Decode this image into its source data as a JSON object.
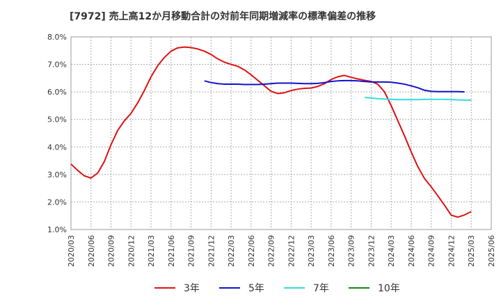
{
  "chart_data": {
    "type": "line",
    "title": "[7972]  売上高12か月移動合計の対前年同期増減率の標準偏差の推移",
    "xlabel": "",
    "ylabel": "",
    "ylim": [
      1.0,
      8.0
    ],
    "y_ticks": [
      "1.0%",
      "2.0%",
      "3.0%",
      "4.0%",
      "5.0%",
      "6.0%",
      "7.0%",
      "8.0%"
    ],
    "y_tick_values": [
      1.0,
      2.0,
      3.0,
      4.0,
      5.0,
      6.0,
      7.0,
      8.0
    ],
    "x_ticks": [
      "2020/03",
      "2020/06",
      "2020/09",
      "2020/12",
      "2021/03",
      "2021/06",
      "2021/09",
      "2021/12",
      "2022/03",
      "2022/06",
      "2022/09",
      "2022/12",
      "2023/03",
      "2023/06",
      "2023/09",
      "2023/12",
      "2024/03",
      "2024/06",
      "2024/09",
      "2024/12",
      "2025/03",
      "2025/06"
    ],
    "x_start": "2020/03",
    "x_months": 63,
    "grid": true,
    "legend_position": "bottom",
    "series": [
      {
        "name": "3年",
        "color": "#dd1111",
        "start": "2020/03",
        "values": [
          3.38,
          3.15,
          2.95,
          2.87,
          3.05,
          3.47,
          4.08,
          4.6,
          4.95,
          5.22,
          5.6,
          6.05,
          6.55,
          6.95,
          7.25,
          7.48,
          7.6,
          7.63,
          7.61,
          7.56,
          7.48,
          7.36,
          7.2,
          7.08,
          7.0,
          6.93,
          6.8,
          6.62,
          6.42,
          6.22,
          6.02,
          5.94,
          5.97,
          6.05,
          6.1,
          6.13,
          6.14,
          6.2,
          6.3,
          6.45,
          6.55,
          6.6,
          6.53,
          6.47,
          6.42,
          6.38,
          6.28,
          6.0,
          5.5,
          4.95,
          4.4,
          3.82,
          3.28,
          2.85,
          2.55,
          2.22,
          1.88,
          1.52,
          1.45,
          1.53,
          1.65
        ]
      },
      {
        "name": "5年",
        "color": "#1111cc",
        "start": "2021/11",
        "values": [
          6.4,
          6.34,
          6.3,
          6.28,
          6.28,
          6.28,
          6.27,
          6.27,
          6.27,
          6.28,
          6.3,
          6.32,
          6.32,
          6.32,
          6.31,
          6.3,
          6.3,
          6.31,
          6.34,
          6.38,
          6.4,
          6.41,
          6.41,
          6.4,
          6.38,
          6.36,
          6.36,
          6.36,
          6.35,
          6.32,
          6.28,
          6.22,
          6.15,
          6.06,
          6.02,
          6.01,
          6.01,
          6.01,
          6.01,
          6.0
        ]
      },
      {
        "name": "7年",
        "color": "#33dddd",
        "start": "2023/11",
        "values": [
          5.8,
          5.78,
          5.75,
          5.74,
          5.73,
          5.72,
          5.72,
          5.72,
          5.72,
          5.73,
          5.73,
          5.73,
          5.73,
          5.72,
          5.71,
          5.7,
          5.7
        ]
      },
      {
        "name": "10年",
        "color": "#118811",
        "start": "",
        "values": []
      }
    ]
  }
}
